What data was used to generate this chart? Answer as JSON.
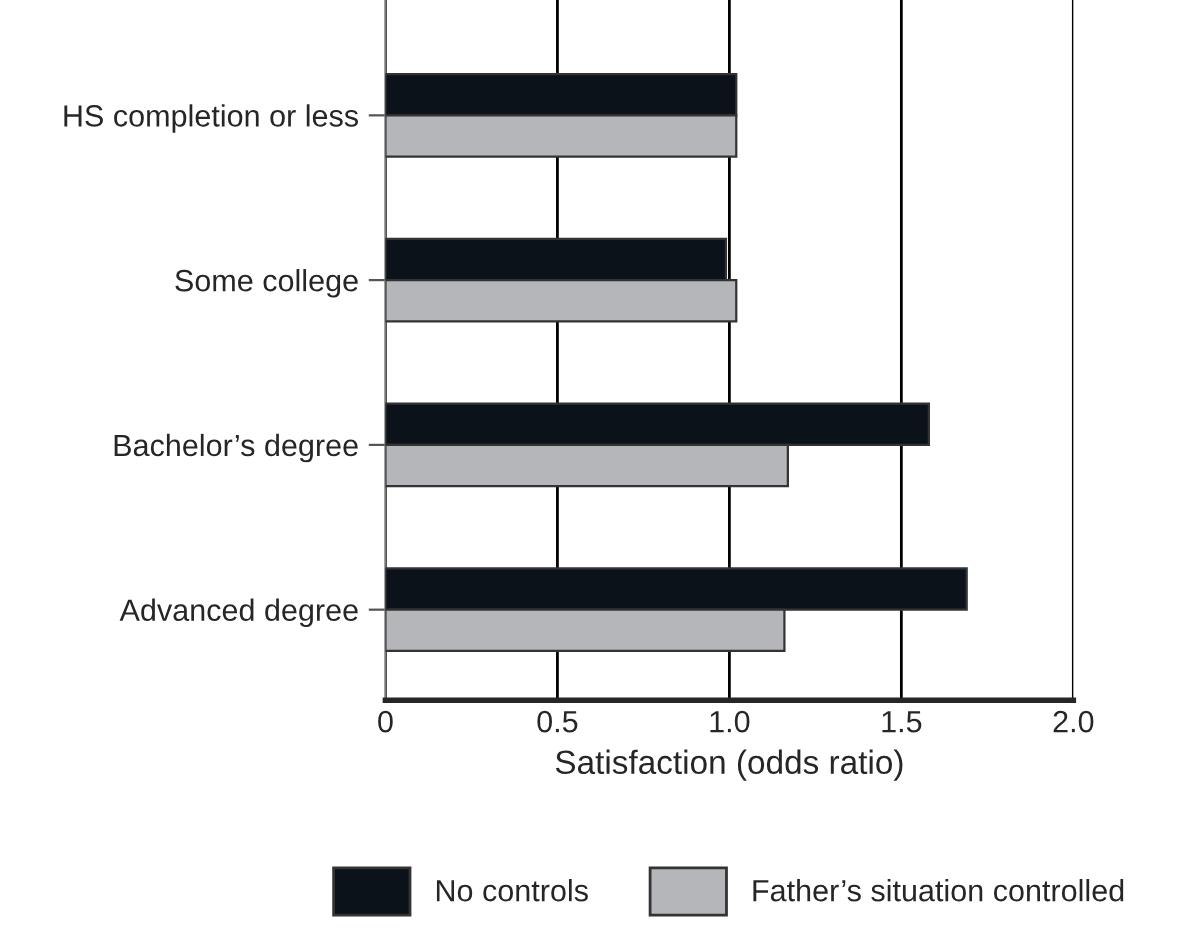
{
  "chart_data": {
    "type": "bar",
    "orientation": "horizontal",
    "xlabel": "Satisfaction (odds ratio)",
    "categories": [
      "HS completion or less",
      "Some college",
      "Bachelor’s degree",
      "Advanced degree"
    ],
    "series": [
      {
        "name": "No controls",
        "color": "#0b121a",
        "values": [
          1.02,
          0.99,
          1.58,
          1.69
        ]
      },
      {
        "name": "Father’s situation controlled",
        "color": "#b5b6ba",
        "values": [
          1.02,
          1.02,
          1.17,
          1.16
        ]
      }
    ],
    "xlim": [
      0,
      2
    ],
    "xticks": [
      0,
      0.5,
      {
        "value": 1,
        "label": "1.0"
      },
      1.5,
      {
        "value": 2,
        "label": "2.0"
      }
    ],
    "grid": "x",
    "legend": "bottom"
  }
}
